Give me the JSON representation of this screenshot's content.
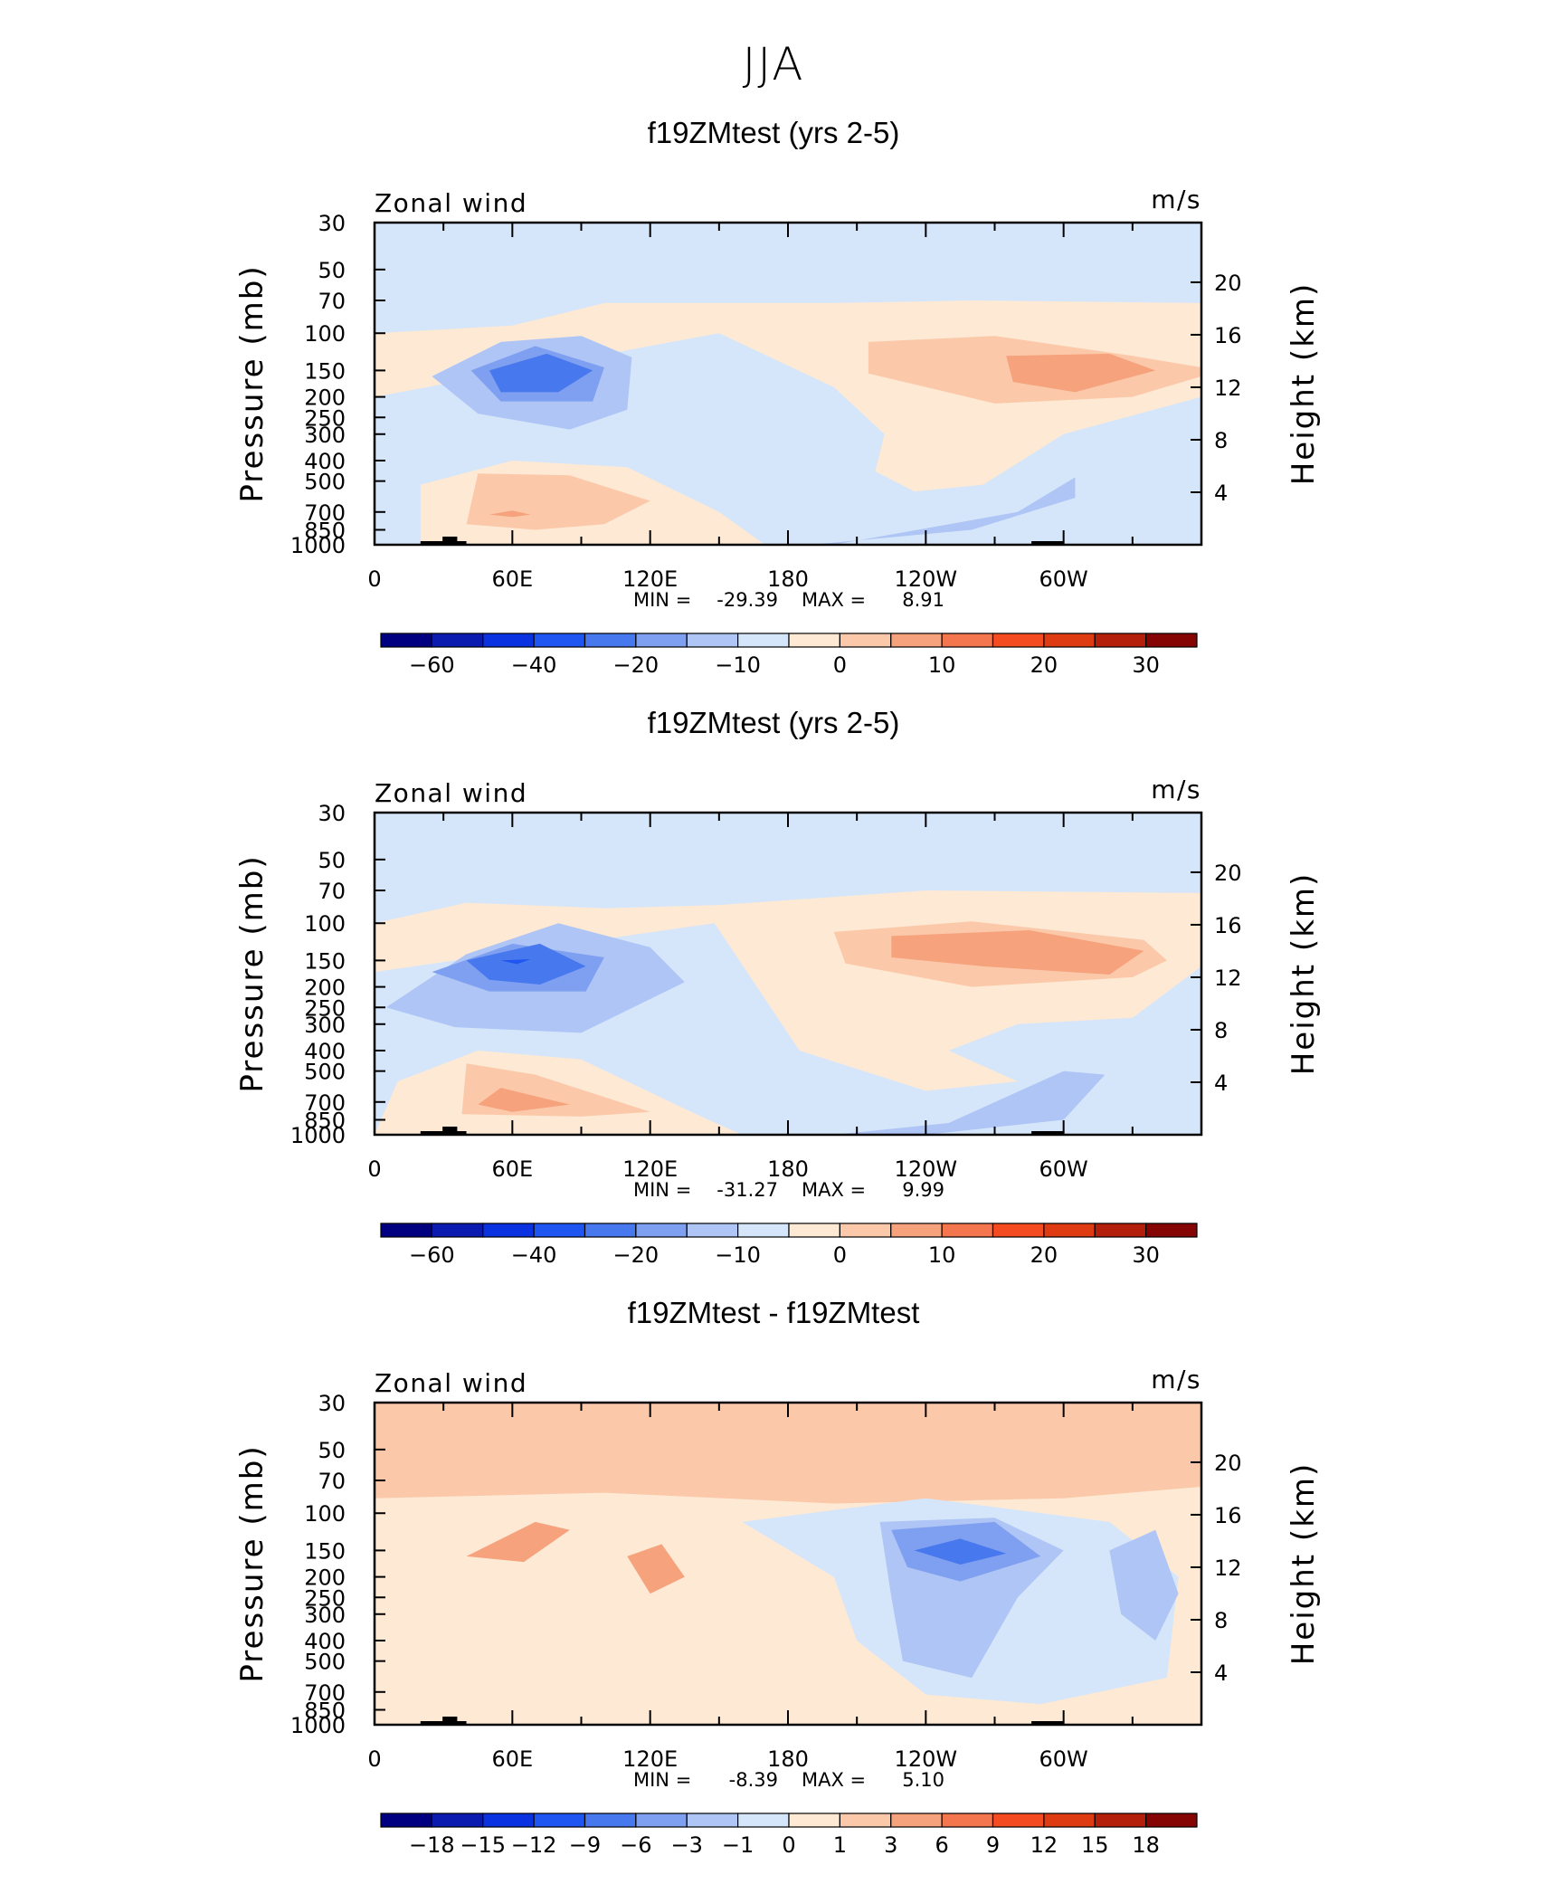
{
  "figure_title": "JJA",
  "chart_data": [
    {
      "type": "heatmap",
      "title": "f19ZMtest (yrs 2-5)",
      "subtitle_left": "Zonal wind",
      "units": "m/s",
      "ylabel": "Pressure (mb)",
      "ylabel_right": "Height (km)",
      "y_ticks": [
        "30",
        "50",
        "70",
        "100",
        "150",
        "200",
        "250",
        "300",
        "400",
        "500",
        "700",
        "850",
        "1000"
      ],
      "y_tick_values": [
        30,
        50,
        70,
        100,
        150,
        200,
        250,
        300,
        400,
        500,
        700,
        850,
        1000
      ],
      "right_ticks": [
        "20",
        "16",
        "12",
        "8",
        "4"
      ],
      "right_tick_values": [
        20,
        16,
        12,
        8,
        4
      ],
      "x_ticks": [
        "0",
        "60E",
        "120E",
        "180",
        "120W",
        "60W"
      ],
      "x_tick_values": [
        0,
        60,
        120,
        180,
        240,
        300
      ],
      "xlim": [
        0,
        360
      ],
      "ylim": [
        1000,
        30
      ],
      "min_label": "MIN =",
      "min": "-29.39",
      "max_label": "MAX =",
      "max": "8.91",
      "colorbar": {
        "colors": [
          "#000080",
          "#0B1BB0",
          "#0A32E0",
          "#1F55F0",
          "#4878EE",
          "#7FA0F0",
          "#AEC5F5",
          "#D5E6FB",
          "#FDE9D4",
          "#FBC9AA",
          "#F6A27C",
          "#F4764E",
          "#F44B21",
          "#DE3B13",
          "#B41F0C",
          "#850404"
        ],
        "labels": [
          "-60",
          "-40",
          "-20",
          "-10",
          "0",
          "10",
          "20",
          "30"
        ],
        "label_positions": [
          1,
          3,
          5,
          7,
          9,
          11,
          13,
          15
        ]
      },
      "features": [
        {
          "name": "jet-core-negative",
          "lon": 75,
          "p": 150,
          "value": -29.4,
          "level": 3
        },
        {
          "name": "subtropical-jet-positive",
          "lon": 300,
          "p": 150,
          "value": 8.9,
          "level": 10
        },
        {
          "name": "lower-trop-positive",
          "lon": 60,
          "p": 600,
          "value": 8,
          "level": 10
        }
      ]
    },
    {
      "type": "heatmap",
      "title": "f19ZMtest (yrs 2-5)",
      "subtitle_left": "Zonal wind",
      "units": "m/s",
      "ylabel": "Pressure (mb)",
      "ylabel_right": "Height (km)",
      "y_ticks": [
        "30",
        "50",
        "70",
        "100",
        "150",
        "200",
        "250",
        "300",
        "400",
        "500",
        "700",
        "850",
        "1000"
      ],
      "y_tick_values": [
        30,
        50,
        70,
        100,
        150,
        200,
        250,
        300,
        400,
        500,
        700,
        850,
        1000
      ],
      "right_ticks": [
        "20",
        "16",
        "12",
        "8",
        "4"
      ],
      "right_tick_values": [
        20,
        16,
        12,
        8,
        4
      ],
      "x_ticks": [
        "0",
        "60E",
        "120E",
        "180",
        "120W",
        "60W"
      ],
      "x_tick_values": [
        0,
        60,
        120,
        180,
        240,
        300
      ],
      "xlim": [
        0,
        360
      ],
      "ylim": [
        1000,
        30
      ],
      "min_label": "MIN =",
      "min": "-31.27",
      "max_label": "MAX =",
      "max": "9.99",
      "colorbar": {
        "colors": [
          "#000080",
          "#0B1BB0",
          "#0A32E0",
          "#1F55F0",
          "#4878EE",
          "#7FA0F0",
          "#AEC5F5",
          "#D5E6FB",
          "#FDE9D4",
          "#FBC9AA",
          "#F6A27C",
          "#F4764E",
          "#F44B21",
          "#DE3B13",
          "#B41F0C",
          "#850404"
        ],
        "labels": [
          "-60",
          "-40",
          "-20",
          "-10",
          "0",
          "10",
          "20",
          "30"
        ],
        "label_positions": [
          1,
          3,
          5,
          7,
          9,
          11,
          13,
          15
        ]
      },
      "features": [
        {
          "name": "jet-core-negative",
          "lon": 70,
          "p": 150,
          "value": -31.3,
          "level": 3
        },
        {
          "name": "subtropical-jet-positive",
          "lon": 270,
          "p": 130,
          "value": 10.0,
          "level": 10
        },
        {
          "name": "lower-trop-positive",
          "lon": 60,
          "p": 650,
          "value": 9,
          "level": 10
        }
      ]
    },
    {
      "type": "heatmap",
      "title": "f19ZMtest - f19ZMtest",
      "subtitle_left": "Zonal wind",
      "units": "m/s",
      "ylabel": "Pressure (mb)",
      "ylabel_right": "Height (km)",
      "y_ticks": [
        "30",
        "50",
        "70",
        "100",
        "150",
        "200",
        "250",
        "300",
        "400",
        "500",
        "700",
        "850",
        "1000"
      ],
      "y_tick_values": [
        30,
        50,
        70,
        100,
        150,
        200,
        250,
        300,
        400,
        500,
        700,
        850,
        1000
      ],
      "right_ticks": [
        "20",
        "16",
        "12",
        "8",
        "4"
      ],
      "right_tick_values": [
        20,
        16,
        12,
        8,
        4
      ],
      "x_ticks": [
        "0",
        "60E",
        "120E",
        "180",
        "120W",
        "60W"
      ],
      "x_tick_values": [
        0,
        60,
        120,
        180,
        240,
        300
      ],
      "xlim": [
        0,
        360
      ],
      "ylim": [
        1000,
        30
      ],
      "min_label": "MIN =",
      "min": "-8.39",
      "max_label": "MAX =",
      "max": "5.10",
      "colorbar": {
        "colors": [
          "#000080",
          "#0B1BB0",
          "#0A32E0",
          "#1F55F0",
          "#4878EE",
          "#7FA0F0",
          "#AEC5F5",
          "#D5E6FB",
          "#FDE9D4",
          "#FBC9AA",
          "#F6A27C",
          "#F4764E",
          "#F44B21",
          "#DE3B13",
          "#B41F0C",
          "#850404"
        ],
        "labels": [
          "-18",
          "-15",
          "-12",
          "-9",
          "-6",
          "-3",
          "-1",
          "0",
          "1",
          "3",
          "6",
          "9",
          "12",
          "15",
          "18"
        ],
        "label_positions": [
          1,
          2,
          3,
          4,
          5,
          6,
          7,
          8,
          9,
          10,
          11,
          12,
          13,
          14,
          15
        ]
      },
      "features": [
        {
          "name": "difference-min",
          "lon": 245,
          "p": 150,
          "value": -8.4,
          "level": 4
        },
        {
          "name": "difference-max-west",
          "lon": 65,
          "p": 140,
          "value": 4,
          "level": 10
        },
        {
          "name": "difference-max-central",
          "lon": 120,
          "p": 180,
          "value": 5.1,
          "level": 10
        }
      ]
    }
  ]
}
